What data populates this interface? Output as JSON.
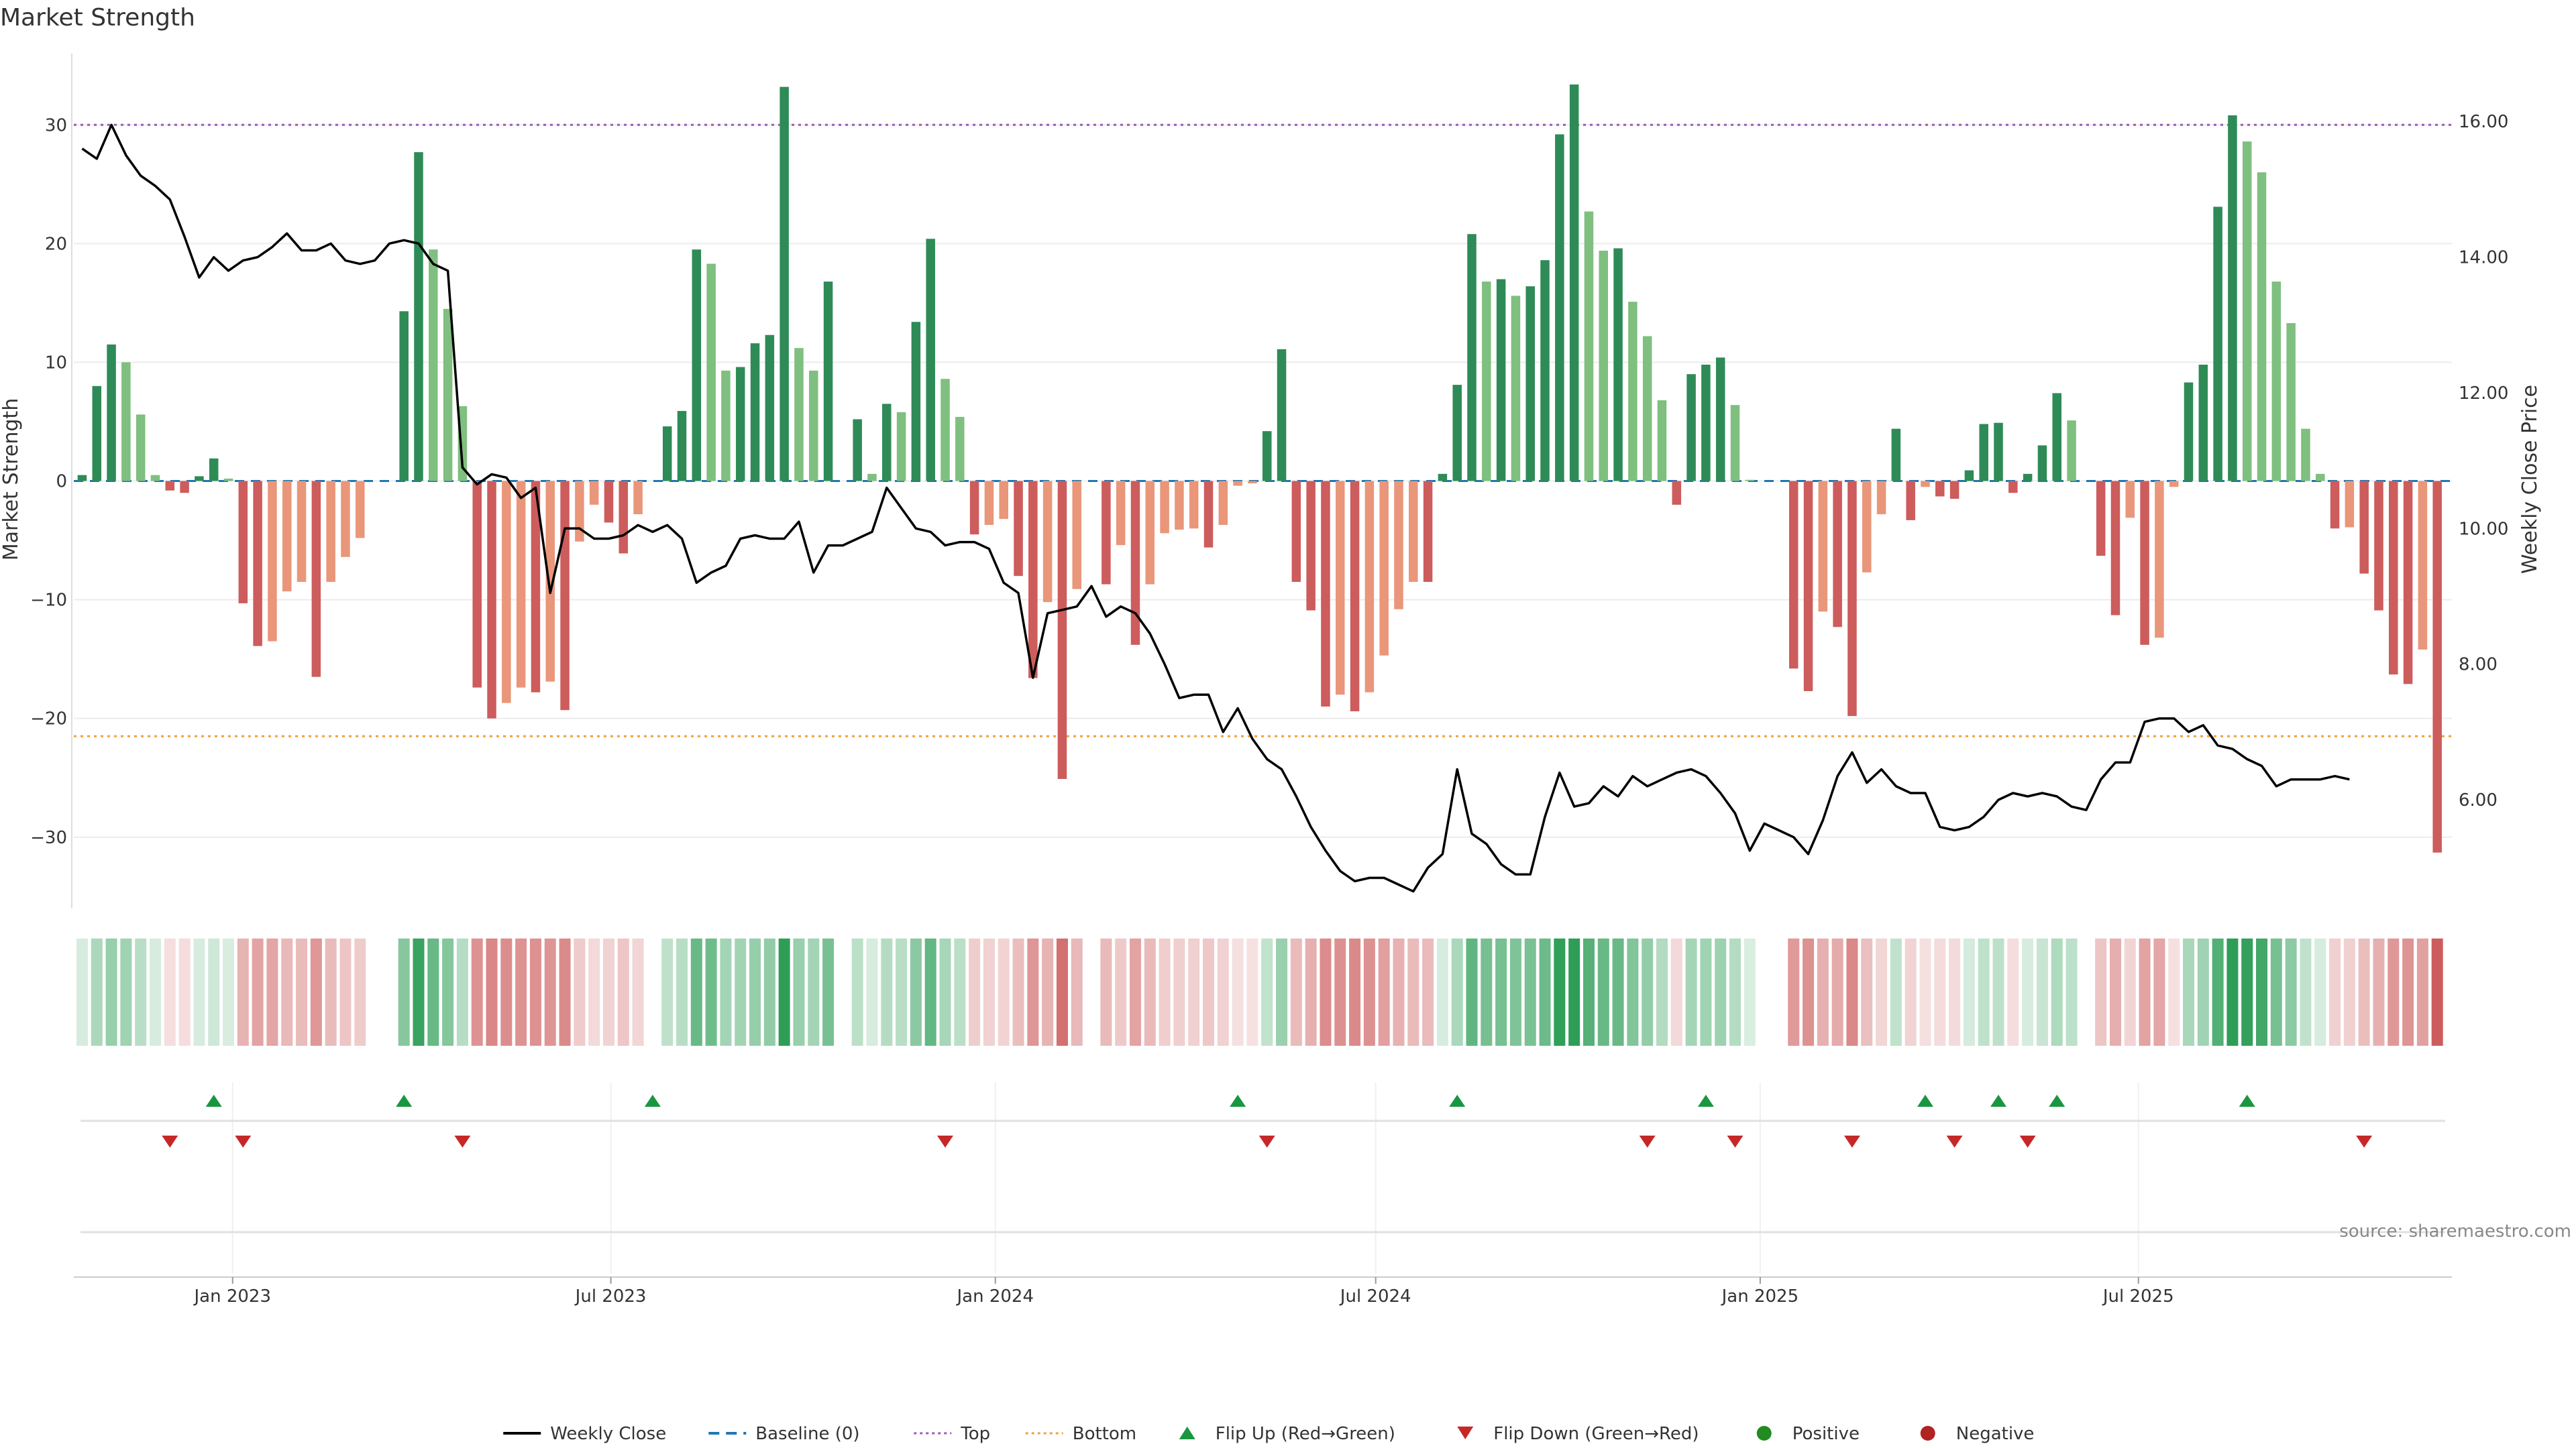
{
  "chart_data": {
    "type": "bar",
    "title": "Market Strength",
    "ylabel": "Market Strength",
    "y2label": "Weekly Close Price",
    "ylim": [
      -36,
      36
    ],
    "y2lim": [
      4.4,
      17.0
    ],
    "yticks": [
      30,
      20,
      10,
      0,
      -10,
      -20,
      -30
    ],
    "y2ticks": [
      "16.00",
      "14.00",
      "12.00",
      "10.00",
      "8.00",
      "6.00"
    ],
    "top_level": 30,
    "bottom_level": -21.5,
    "xlim": [
      "2022-10-17",
      "2025-11-28"
    ],
    "x_ticks": [
      {
        "date": "2023-01-01",
        "label": "Jan 2023"
      },
      {
        "date": "2023-07-01",
        "label": "Jul 2023"
      },
      {
        "date": "2024-01-01",
        "label": "Jan 2024"
      },
      {
        "date": "2024-07-01",
        "label": "Jul 2024"
      },
      {
        "date": "2025-01-01",
        "label": "Jan 2025"
      },
      {
        "date": "2025-07-01",
        "label": "Jul 2025"
      }
    ],
    "start_week": "2022-10-21",
    "strength": [
      0.5,
      8.0,
      11.5,
      10.0,
      5.6,
      0.5,
      -0.8,
      -1.0,
      0.4,
      1.9,
      0.2,
      -10.3,
      -13.9,
      -13.5,
      -9.3,
      -8.5,
      -16.5,
      -8.5,
      -6.4,
      -4.8,
      0,
      0,
      14.3,
      27.7,
      19.5,
      14.5,
      6.3,
      -17.4,
      -20.0,
      -18.7,
      -17.4,
      -17.8,
      -16.9,
      -19.3,
      -5.1,
      -2.0,
      -3.5,
      -6.1,
      -2.8,
      0,
      4.6,
      5.9,
      19.5,
      18.3,
      9.3,
      9.6,
      11.6,
      12.3,
      33.2,
      11.2,
      9.3,
      16.8,
      0,
      5.2,
      0.6,
      6.5,
      5.8,
      13.4,
      20.4,
      8.6,
      5.4,
      -4.5,
      -3.7,
      -3.2,
      -8.0,
      -16.6,
      -10.2,
      -25.1,
      -9.1,
      0,
      -8.7,
      -5.4,
      -13.8,
      -8.7,
      -4.4,
      -4.1,
      -4.0,
      -5.6,
      -3.7,
      -0.4,
      -0.2,
      4.2,
      11.1,
      -8.5,
      -10.9,
      -19.0,
      -18.0,
      -19.4,
      -17.8,
      -14.7,
      -10.8,
      -8.5,
      -8.5,
      0.6,
      8.1,
      20.8,
      16.8,
      17.0,
      15.6,
      16.4,
      18.6,
      29.2,
      33.4,
      22.7,
      19.4,
      19.6,
      15.1,
      12.2,
      6.8,
      -2.0,
      9.0,
      9.8,
      10.4,
      6.4,
      0.1,
      0,
      0,
      -15.8,
      -17.7,
      -11.0,
      -12.3,
      -19.8,
      -7.7,
      -2.8,
      4.4,
      -3.3,
      -0.5,
      -1.3,
      -1.5,
      0.9,
      4.8,
      4.9,
      -1.0,
      0.6,
      3.0,
      7.4,
      5.1,
      0,
      -6.3,
      -11.3,
      -3.1,
      -13.8,
      -13.2,
      -0.5,
      8.3,
      9.8,
      23.1,
      30.8,
      28.6,
      26.0,
      16.8,
      13.3,
      4.4,
      0.6,
      -4.0,
      -3.9,
      -7.8,
      -10.9,
      -16.3,
      -17.1,
      -14.2,
      -31.3
    ],
    "weekly_close": [
      15.6,
      15.45,
      15.95,
      15.5,
      15.2,
      15.05,
      14.85,
      14.3,
      13.7,
      14.0,
      13.8,
      13.95,
      14.0,
      14.15,
      14.35,
      14.1,
      14.1,
      14.2,
      13.95,
      13.9,
      13.95,
      14.2,
      14.25,
      14.2,
      13.9,
      13.8,
      10.9,
      10.65,
      10.8,
      10.75,
      10.45,
      10.6,
      9.05,
      10.0,
      10.0,
      9.85,
      9.85,
      9.9,
      10.05,
      9.95,
      10.05,
      9.85,
      9.2,
      9.35,
      9.45,
      9.85,
      9.9,
      9.85,
      9.85,
      10.1,
      9.35,
      9.75,
      9.75,
      9.85,
      9.95,
      10.6,
      10.3,
      10.0,
      9.95,
      9.75,
      9.8,
      9.8,
      9.7,
      9.2,
      9.05,
      7.8,
      8.75,
      8.8,
      8.85,
      9.15,
      8.7,
      8.85,
      8.75,
      8.45,
      8.0,
      7.5,
      7.55,
      7.55,
      7.0,
      7.35,
      6.9,
      6.6,
      6.45,
      6.05,
      5.6,
      5.25,
      4.95,
      4.8,
      4.85,
      4.85,
      4.75,
      4.65,
      5.0,
      5.2,
      6.45,
      5.5,
      5.35,
      5.05,
      4.9,
      4.9,
      5.75,
      6.4,
      5.9,
      5.95,
      6.2,
      6.05,
      6.35,
      6.2,
      6.3,
      6.4,
      6.45,
      6.35,
      6.1,
      5.8,
      5.25,
      5.65,
      5.55,
      5.45,
      5.2,
      5.7,
      6.35,
      6.7,
      6.25,
      6.45,
      6.2,
      6.1,
      6.1,
      5.6,
      5.55,
      5.6,
      5.75,
      6.0,
      6.1,
      6.05,
      6.1,
      6.05,
      5.9,
      5.85,
      6.3,
      6.55,
      6.55,
      7.15,
      7.2,
      7.2,
      7.0,
      7.1,
      6.8,
      6.75,
      6.6,
      6.5,
      6.2,
      6.3,
      6.3,
      6.3,
      6.35,
      6.3
    ],
    "flip_up_weeks": [
      9,
      22,
      39,
      79,
      94,
      111,
      126,
      131,
      135,
      148
    ],
    "flip_down_weeks": [
      6,
      11,
      26,
      59,
      81,
      107,
      113,
      121,
      128,
      133,
      156
    ],
    "colors": {
      "pos_dark": "#2e8b57",
      "pos_light": "#7fbf7f",
      "neg_dark": "#cd5c5c",
      "neg_light": "#e9967a",
      "close": "#000000",
      "baseline": "#1f77b4",
      "top": "#9b59b6",
      "bottom": "#f0a040",
      "flip_up": "#1a9641",
      "flip_down": "#c62828",
      "positive": "#228b22",
      "negative": "#b22222"
    },
    "legend": [
      {
        "label": "Weekly Close",
        "kind": "line"
      },
      {
        "label": "Baseline (0)",
        "kind": "dash"
      },
      {
        "label": "Top",
        "kind": "dot-top"
      },
      {
        "label": "Bottom",
        "kind": "dot-bottom"
      },
      {
        "label": "Flip Up (Red→Green)",
        "kind": "tri-up"
      },
      {
        "label": "Flip Down (Green→Red)",
        "kind": "tri-down"
      },
      {
        "label": "Positive",
        "kind": "dot-pos"
      },
      {
        "label": "Negative",
        "kind": "dot-neg"
      }
    ],
    "source": "source: sharemaestro.com"
  }
}
